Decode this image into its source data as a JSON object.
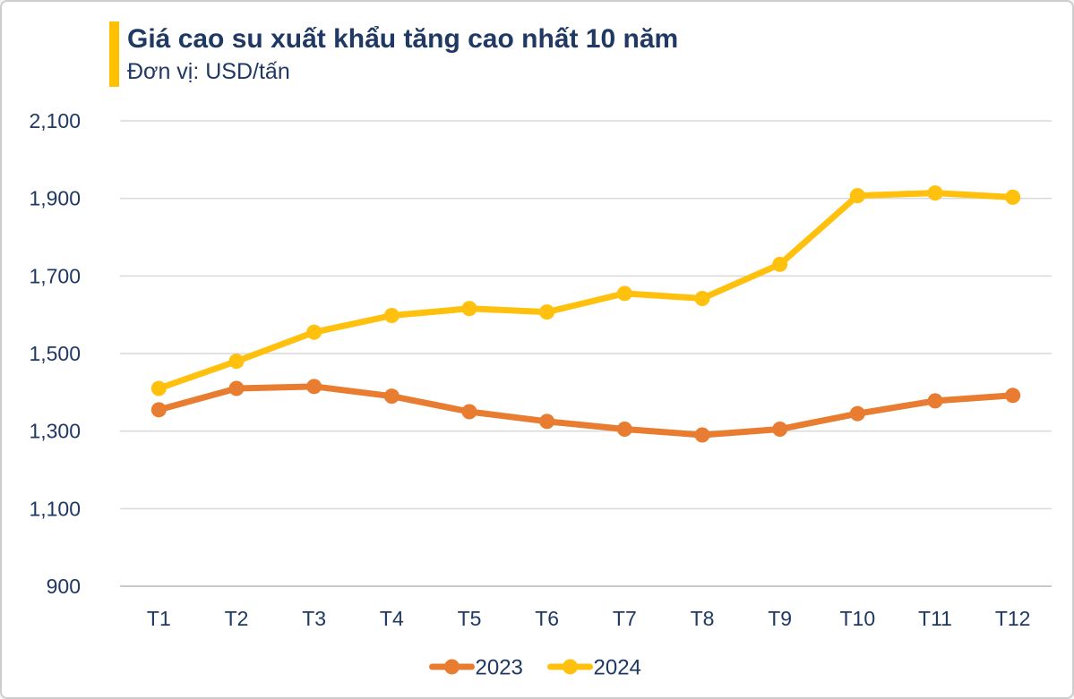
{
  "header": {
    "title": "Giá cao su xuất khẩu tăng cao nhất 10 năm",
    "subtitle": "Đơn vị: USD/tấn"
  },
  "colors": {
    "accent_bar": "#FFC000",
    "text_navy": "#1F3864",
    "gridline": "#D9D9D9",
    "baseline": "#C9C9C9",
    "background": "#FFFFFF",
    "frame_border": "#CDCDCD",
    "series_2023": "#E87C30",
    "series_2024": "#FFC10E"
  },
  "chart_data": {
    "type": "line",
    "title": "Giá cao su xuất khẩu tăng cao nhất 10 năm",
    "xlabel": "",
    "ylabel": "USD/tấn",
    "categories": [
      "T1",
      "T2",
      "T3",
      "T4",
      "T5",
      "T6",
      "T7",
      "T8",
      "T9",
      "T10",
      "T11",
      "T12"
    ],
    "series": [
      {
        "name": "2023",
        "color": "#E87C30",
        "values": [
          1355,
          1410,
          1415,
          1390,
          1350,
          1325,
          1305,
          1290,
          1305,
          1345,
          1378,
          1392
        ]
      },
      {
        "name": "2024",
        "color": "#FFC10E",
        "values": [
          1410,
          1480,
          1555,
          1598,
          1616,
          1607,
          1655,
          1642,
          1730,
          1907,
          1914,
          1903
        ]
      }
    ],
    "y_ticks": [
      {
        "value": 2100,
        "label": "2,100"
      },
      {
        "value": 1900,
        "label": "1,900"
      },
      {
        "value": 1700,
        "label": "1,700"
      },
      {
        "value": 1500,
        "label": "1,500"
      },
      {
        "value": 1300,
        "label": "1,300"
      },
      {
        "value": 1100,
        "label": "1,100"
      },
      {
        "value": 900,
        "label": "900"
      }
    ],
    "ylim": [
      900,
      2100
    ],
    "grid": "horizontal",
    "legend_position": "bottom"
  }
}
